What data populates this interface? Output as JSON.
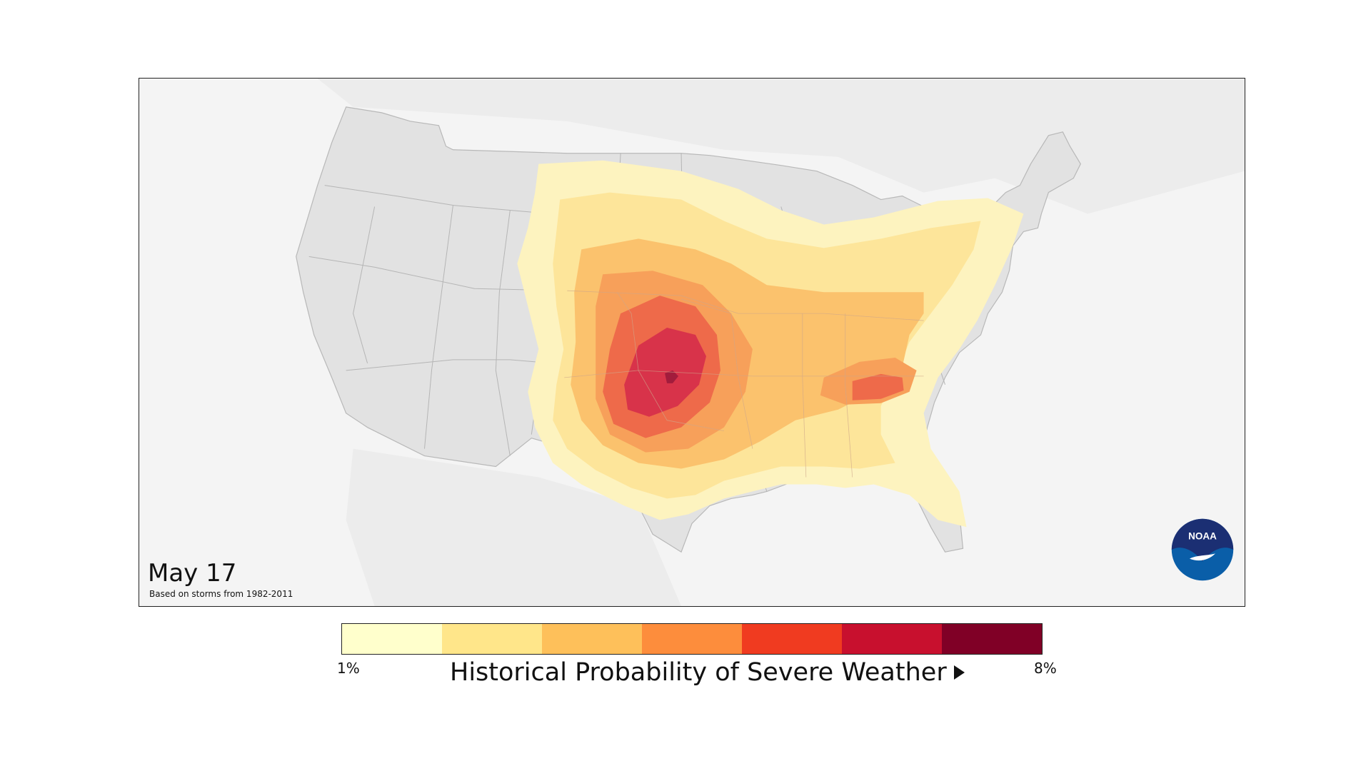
{
  "map": {
    "date": "May 17",
    "based_on": "Based on storms from 1982-2011",
    "logo_text": "NOAA"
  },
  "legend": {
    "title": "Historical Probability of Severe Weather",
    "min_label": "1%",
    "max_label": "8%",
    "colors": [
      "#ffffcc",
      "#ffe68a",
      "#fec05a",
      "#fd8d3c",
      "#f03b20",
      "#c8102e",
      "#800026"
    ]
  },
  "colors": {
    "land": "#e2e2e2",
    "state_lines": "#aaaaaa",
    "ocean": "#f4f4f4",
    "noaa_blue": "#0a5ea8",
    "noaa_navy": "#1b2f73"
  }
}
